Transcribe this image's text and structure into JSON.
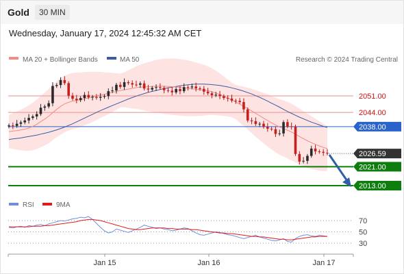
{
  "header": {
    "title": "Gold",
    "timeframe": "30 MIN"
  },
  "timestamp": "Wednesday, January 17, 2024 12:45:32 AM CET",
  "legend": {
    "ma20": "MA 20 + Bollinger Bands",
    "ma50": "MA 50",
    "credit": "Research © 2024 Trading Central",
    "ma20_color": "#f28b82",
    "ma50_color": "#3b5ba5"
  },
  "rsi_legend": {
    "rsi": "RSI",
    "ma9": "9MA",
    "rsi_color": "#6f8fdc",
    "ma9_color": "#e01b1b"
  },
  "levels": [
    {
      "value": "2051.00",
      "kind": "resistance",
      "color": "#ee8e8e"
    },
    {
      "value": "2044.00",
      "kind": "resistance",
      "color": "#ee8e8e"
    },
    {
      "value": "2038.00",
      "kind": "pivot",
      "color": "#2a63c9"
    },
    {
      "value": "2026.59",
      "kind": "last",
      "color": "#333333"
    },
    {
      "value": "2021.00",
      "kind": "support",
      "color": "#0d7d0d"
    },
    {
      "value": "2013.00",
      "kind": "support",
      "color": "#0d7d0d"
    }
  ],
  "rsi_levels": [
    "70",
    "50",
    "30"
  ],
  "x_labels": [
    "Jan 15",
    "Jan 16",
    "Jan 17"
  ],
  "chart_data": {
    "type": "candlestick",
    "y_range": [
      2008,
      2066
    ],
    "close": [
      2038.5,
      2038.3,
      2039.2,
      2039.8,
      2040.6,
      2041.7,
      2042.3,
      2043.3,
      2046.0,
      2046.5,
      2047.9,
      2055.2,
      2055.6,
      2057.7,
      2056.4,
      2051.1,
      2049.8,
      2049.2,
      2050.1,
      2051.4,
      2050.4,
      2050.6,
      2050.2,
      2050.6,
      2050.9,
      2053.0,
      2053.3,
      2055.7,
      2054.8,
      2056.8,
      2056.4,
      2055.8,
      2055.7,
      2056.3,
      2054.1,
      2053.7,
      2054.4,
      2054.7,
      2054.4,
      2053.4,
      2053.2,
      2052.5,
      2053.9,
      2053.0,
      2054.7,
      2054.6,
      2055.0,
      2054.2,
      2054.0,
      2052.8,
      2052.1,
      2051.3,
      2051.5,
      2050.9,
      2050.1,
      2049.9,
      2049.0,
      2048.9,
      2048.4,
      2045.3,
      2040.6,
      2040.3,
      2039.1,
      2039.2,
      2037.9,
      2037.1,
      2036.9,
      2034.9,
      2035.1,
      2039.9,
      2038.1,
      2038.0,
      2026.4,
      2023.2,
      2023.5,
      2025.6,
      2028.7,
      2027.5,
      2027.3,
      2026.9,
      2026.6
    ],
    "ma20": [
      2035.9,
      2036.1,
      2036.3,
      2036.6,
      2036.9,
      2037.4,
      2038.1,
      2039.0,
      2040.1,
      2041.2,
      2042.4,
      2043.9,
      2045.3,
      2046.6,
      2047.6,
      2048.3,
      2048.8,
      2049.1,
      2049.4,
      2049.8,
      2050.2,
      2050.6,
      2051.0,
      2051.4,
      2051.7,
      2052.1,
      2052.5,
      2052.9,
      2053.3,
      2053.6,
      2053.9,
      2054.2,
      2054.5,
      2054.7,
      2054.8,
      2054.9,
      2055.0,
      2055.1,
      2055.1,
      2055.1,
      2055.0,
      2054.9,
      2054.8,
      2054.6,
      2054.4,
      2054.2,
      2054.0,
      2053.8,
      2053.6,
      2053.4,
      2053.2,
      2052.8,
      2052.2,
      2051.6,
      2050.9,
      2050.1,
      2049.3,
      2048.4,
      2047.5,
      2046.6,
      2045.6,
      2044.6,
      2043.6,
      2042.6,
      2041.6,
      2040.6,
      2039.6,
      2038.7,
      2037.8,
      2037.2,
      2036.5,
      2035.7,
      2034.8,
      2033.8,
      2032.9,
      2032.0,
      2031.2,
      2030.5,
      2029.8,
      2029.2,
      2028.7
    ],
    "ma50": [
      2032.5,
      2032.8,
      2033.0,
      2033.2,
      2033.5,
      2033.8,
      2034.1,
      2034.4,
      2034.8,
      2035.2,
      2035.6,
      2036.1,
      2036.6,
      2037.2,
      2037.8,
      2038.5,
      2039.2,
      2040.0,
      2040.8,
      2041.6,
      2042.4,
      2043.2,
      2044.0,
      2044.8,
      2045.5,
      2046.2,
      2046.9,
      2047.6,
      2048.3,
      2049.0,
      2049.7,
      2050.3,
      2050.9,
      2051.5,
      2052.0,
      2052.5,
      2052.9,
      2053.3,
      2053.7,
      2054.1,
      2054.4,
      2054.7,
      2055.0,
      2055.3,
      2055.5,
      2055.7,
      2055.9,
      2056.0,
      2056.0,
      2056.0,
      2055.9,
      2055.8,
      2055.6,
      2055.4,
      2055.1,
      2054.8,
      2054.4,
      2054.0,
      2053.5,
      2053.0,
      2052.4,
      2051.8,
      2051.1,
      2050.4,
      2049.6,
      2048.8,
      2047.9,
      2047.1,
      2046.2,
      2045.3,
      2044.4,
      2043.6,
      2042.8,
      2042.0,
      2041.3,
      2040.6,
      2039.9,
      2039.3,
      2038.7,
      2038.1,
      2037.6
    ],
    "rsi": [
      58,
      57,
      59,
      60,
      58,
      61,
      60,
      62,
      63,
      61,
      64,
      66,
      68,
      70,
      69,
      71,
      73,
      74,
      76,
      75,
      77,
      72,
      65,
      58,
      52,
      48,
      50,
      55,
      53,
      51,
      49,
      52,
      55,
      58,
      62,
      60,
      58,
      56,
      57,
      55,
      54,
      52,
      53,
      55,
      57,
      56,
      52,
      48,
      45,
      44,
      46,
      48,
      50,
      49,
      47,
      45,
      44,
      42,
      40,
      38,
      40,
      42,
      44,
      41,
      39,
      37,
      35,
      34,
      36,
      38,
      33,
      32,
      38,
      42,
      44,
      45,
      43,
      42,
      44,
      43,
      42
    ],
    "rsi_ma9": [
      59,
      59,
      59,
      59,
      59,
      59,
      60,
      60,
      60,
      61,
      61,
      62,
      63,
      64,
      65,
      66,
      67,
      68,
      70,
      71,
      72,
      72,
      71,
      70,
      68,
      66,
      64,
      62,
      60,
      58,
      56,
      55,
      54,
      54,
      55,
      56,
      57,
      57,
      57,
      57,
      56,
      56,
      55,
      55,
      55,
      55,
      54,
      54,
      53,
      52,
      51,
      50,
      49,
      48,
      48,
      47,
      47,
      46,
      45,
      44,
      43,
      42,
      42,
      41,
      41,
      40,
      39,
      38,
      37,
      37,
      36,
      36,
      37,
      38,
      39,
      40,
      41,
      41,
      42,
      42,
      42
    ]
  }
}
